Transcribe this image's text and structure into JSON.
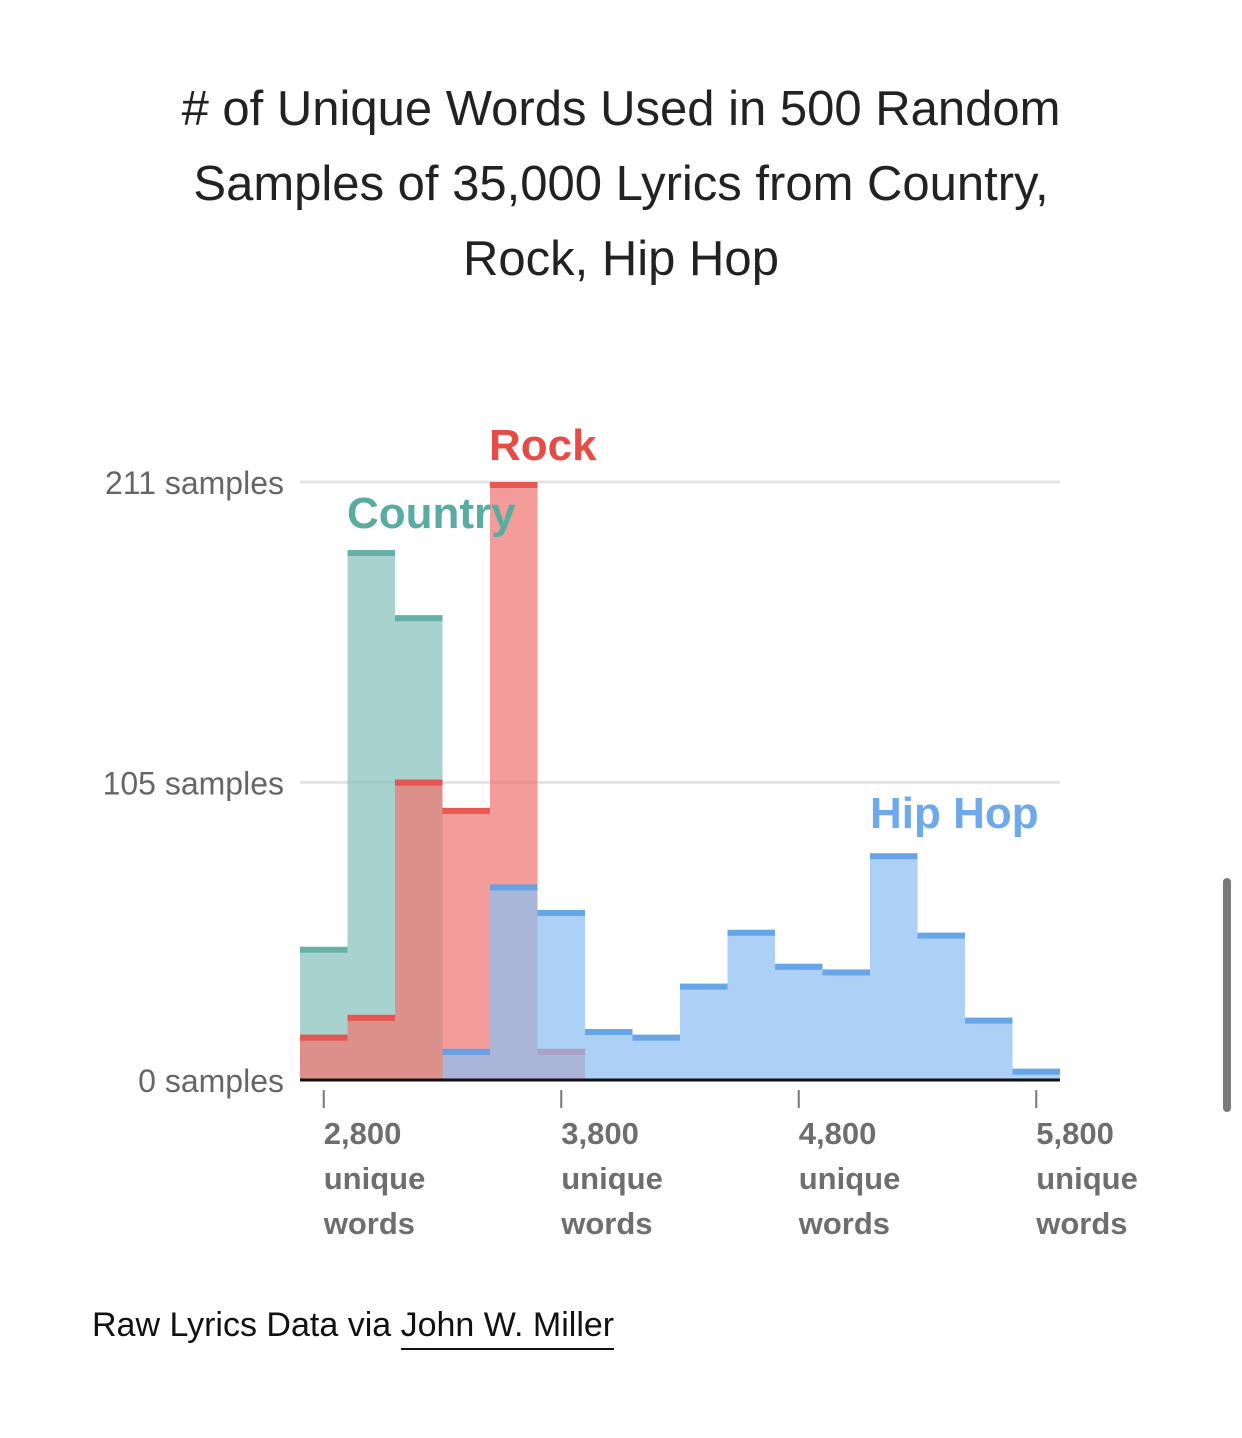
{
  "chart_data": {
    "type": "bar",
    "title_lines": [
      "# of Unique Words Used in 500 Random",
      "Samples of 35,000 Lyrics from Country,",
      "Rock, Hip Hop"
    ],
    "bin_width": 200,
    "x_start": 2700,
    "xlim": [
      2700,
      5900
    ],
    "ylim": [
      0,
      211
    ],
    "y_ticks": [
      {
        "value": 211,
        "label": "211 samples"
      },
      {
        "value": 105,
        "label": "105 samples"
      },
      {
        "value": 0,
        "label": "0 samples"
      }
    ],
    "x_ticks": [
      {
        "value": 2800,
        "label": [
          "2,800",
          "unique",
          "words"
        ]
      },
      {
        "value": 3800,
        "label": [
          "3,800",
          "unique",
          "words"
        ]
      },
      {
        "value": 4800,
        "label": [
          "4,800",
          "unique",
          "words"
        ]
      },
      {
        "value": 5800,
        "label": [
          "5,800",
          "unique",
          "words"
        ]
      }
    ],
    "grid": true,
    "series": [
      {
        "name": "Country",
        "color": "#5aaba0",
        "fill": "#86c1ba",
        "values": [
          47,
          187,
          164,
          0,
          0,
          0,
          0,
          0,
          0,
          0,
          0,
          0,
          0,
          0,
          0,
          0
        ]
      },
      {
        "name": "Rock",
        "color": "#e64c45",
        "fill": "#ee7672",
        "values": [
          16,
          23,
          106,
          96,
          211,
          11,
          0,
          0,
          0,
          0,
          0,
          0,
          0,
          0,
          0,
          0
        ]
      },
      {
        "name": "Hip Hop",
        "color": "#5a9ee6",
        "fill": "#8ebff2",
        "values": [
          0,
          0,
          0,
          11,
          69,
          60,
          18,
          16,
          34,
          53,
          41,
          39,
          80,
          52,
          22,
          4
        ]
      }
    ],
    "label_colors": {
      "Country": "#5aaba0",
      "Rock": "#e64c45",
      "Hip Hop": "#6ea9ec"
    }
  },
  "source": {
    "prefix": "Raw Lyrics Data via ",
    "link": "John W. Miller"
  }
}
